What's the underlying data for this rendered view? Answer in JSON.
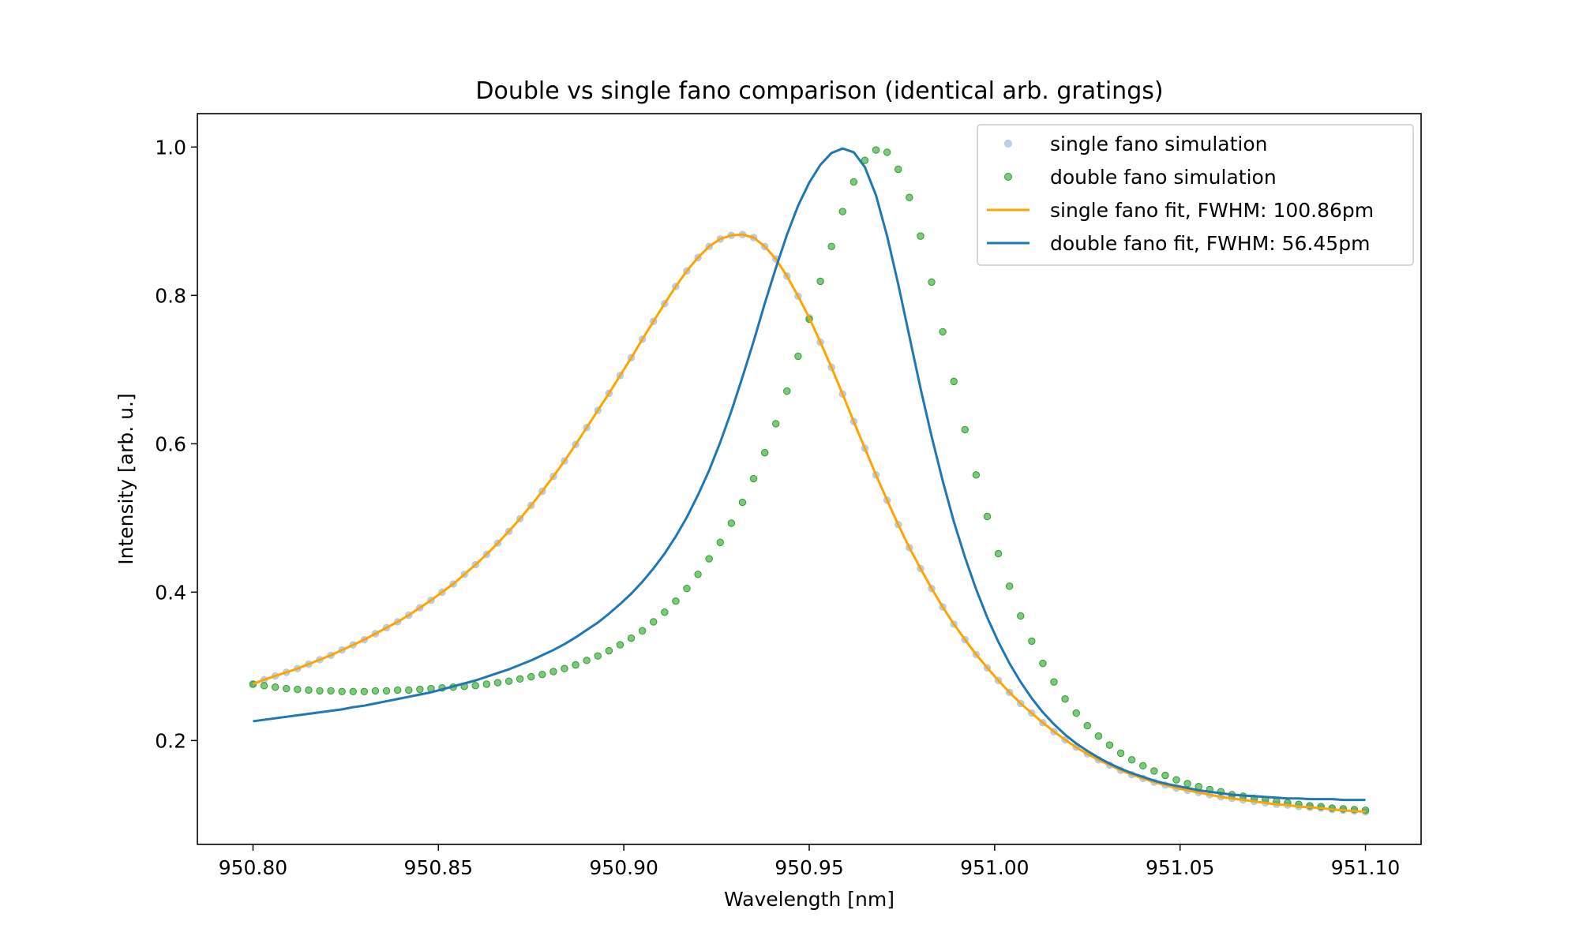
{
  "chart_data": {
    "type": "line",
    "title": "Double vs single fano comparison (identical arb. gratings)",
    "xlabel": "Wavelength [nm]",
    "ylabel": "Intensity [arb. u.]",
    "xlim": [
      950.785,
      951.115
    ],
    "ylim": [
      0.06,
      1.045
    ],
    "xticks": [
      950.8,
      950.85,
      950.9,
      950.95,
      951.0,
      951.05,
      951.1
    ],
    "xtick_labels": [
      "950.80",
      "950.85",
      "950.90",
      "950.95",
      "951.00",
      "951.05",
      "951.10"
    ],
    "yticks": [
      0.2,
      0.4,
      0.6,
      0.8,
      1.0
    ],
    "ytick_labels": [
      "0.2",
      "0.4",
      "0.6",
      "0.8",
      "1.0"
    ],
    "grid": false,
    "legend_placement": "top-right",
    "x": [
      950.8,
      950.803,
      950.806,
      950.809,
      950.812,
      950.815,
      950.818,
      950.821,
      950.824,
      950.827,
      950.83,
      950.833,
      950.836,
      950.839,
      950.842,
      950.845,
      950.848,
      950.851,
      950.854,
      950.857,
      950.86,
      950.863,
      950.866,
      950.869,
      950.872,
      950.875,
      950.878,
      950.881,
      950.884,
      950.887,
      950.89,
      950.893,
      950.896,
      950.899,
      950.902,
      950.905,
      950.908,
      950.911,
      950.914,
      950.917,
      950.92,
      950.923,
      950.926,
      950.929,
      950.932,
      950.935,
      950.938,
      950.941,
      950.944,
      950.947,
      950.95,
      950.953,
      950.956,
      950.959,
      950.962,
      950.965,
      950.968,
      950.971,
      950.974,
      950.977,
      950.98,
      950.983,
      950.986,
      950.989,
      950.992,
      950.995,
      950.998,
      951.001,
      951.004,
      951.007,
      951.01,
      951.013,
      951.016,
      951.019,
      951.022,
      951.025,
      951.028,
      951.031,
      951.034,
      951.037,
      951.04,
      951.043,
      951.046,
      951.049,
      951.052,
      951.055,
      951.058,
      951.061,
      951.064,
      951.067,
      951.07,
      951.073,
      951.076,
      951.079,
      951.082,
      951.085,
      951.088,
      951.091,
      951.094,
      951.097,
      951.1
    ],
    "series": [
      {
        "name": "single fano simulation",
        "kind": "markers",
        "color": "#aec7e8",
        "values": [
          0.276,
          0.282,
          0.287,
          0.292,
          0.297,
          0.303,
          0.309,
          0.315,
          0.322,
          0.329,
          0.336,
          0.344,
          0.352,
          0.36,
          0.369,
          0.379,
          0.389,
          0.4,
          0.411,
          0.424,
          0.437,
          0.451,
          0.466,
          0.482,
          0.499,
          0.517,
          0.536,
          0.556,
          0.577,
          0.599,
          0.622,
          0.645,
          0.668,
          0.692,
          0.716,
          0.741,
          0.765,
          0.789,
          0.812,
          0.833,
          0.851,
          0.866,
          0.876,
          0.881,
          0.882,
          0.878,
          0.866,
          0.849,
          0.826,
          0.799,
          0.77,
          0.737,
          0.703,
          0.667,
          0.63,
          0.594,
          0.558,
          0.524,
          0.491,
          0.46,
          0.432,
          0.405,
          0.38,
          0.357,
          0.336,
          0.316,
          0.298,
          0.281,
          0.265,
          0.25,
          0.237,
          0.224,
          0.212,
          0.201,
          0.191,
          0.182,
          0.174,
          0.167,
          0.16,
          0.154,
          0.149,
          0.144,
          0.14,
          0.136,
          0.133,
          0.13,
          0.127,
          0.124,
          0.122,
          0.12,
          0.118,
          0.116,
          0.114,
          0.113,
          0.111,
          0.11,
          0.109,
          0.107,
          0.106,
          0.105,
          0.104
        ]
      },
      {
        "name": "double fano simulation",
        "kind": "markers",
        "color": "#2ca02c",
        "values": [
          0.276,
          0.274,
          0.272,
          0.27,
          0.269,
          0.268,
          0.267,
          0.267,
          0.266,
          0.266,
          0.266,
          0.267,
          0.267,
          0.268,
          0.268,
          0.269,
          0.27,
          0.271,
          0.272,
          0.273,
          0.274,
          0.276,
          0.278,
          0.28,
          0.283,
          0.286,
          0.289,
          0.293,
          0.297,
          0.302,
          0.308,
          0.314,
          0.321,
          0.329,
          0.338,
          0.348,
          0.36,
          0.373,
          0.388,
          0.405,
          0.424,
          0.445,
          0.467,
          0.493,
          0.521,
          0.553,
          0.588,
          0.627,
          0.671,
          0.718,
          0.768,
          0.819,
          0.866,
          0.913,
          0.953,
          0.982,
          0.996,
          0.993,
          0.97,
          0.932,
          0.88,
          0.818,
          0.751,
          0.684,
          0.619,
          0.558,
          0.502,
          0.452,
          0.408,
          0.368,
          0.334,
          0.304,
          0.279,
          0.256,
          0.237,
          0.22,
          0.206,
          0.194,
          0.183,
          0.174,
          0.166,
          0.159,
          0.153,
          0.147,
          0.142,
          0.138,
          0.134,
          0.131,
          0.127,
          0.125,
          0.122,
          0.12,
          0.118,
          0.116,
          0.114,
          0.112,
          0.111,
          0.109,
          0.108,
          0.107,
          0.106
        ]
      },
      {
        "name": "single fano fit, FWHM: 100.86pm",
        "kind": "line",
        "color": "#ffa500",
        "values": [
          0.276,
          0.282,
          0.287,
          0.292,
          0.297,
          0.303,
          0.309,
          0.315,
          0.322,
          0.329,
          0.336,
          0.344,
          0.352,
          0.36,
          0.369,
          0.379,
          0.389,
          0.4,
          0.411,
          0.424,
          0.437,
          0.451,
          0.466,
          0.482,
          0.499,
          0.517,
          0.536,
          0.556,
          0.577,
          0.599,
          0.622,
          0.645,
          0.668,
          0.692,
          0.716,
          0.741,
          0.765,
          0.789,
          0.812,
          0.833,
          0.851,
          0.866,
          0.876,
          0.881,
          0.882,
          0.878,
          0.866,
          0.849,
          0.826,
          0.799,
          0.77,
          0.737,
          0.703,
          0.667,
          0.63,
          0.594,
          0.558,
          0.524,
          0.491,
          0.46,
          0.432,
          0.405,
          0.38,
          0.357,
          0.336,
          0.316,
          0.298,
          0.281,
          0.265,
          0.25,
          0.237,
          0.224,
          0.212,
          0.201,
          0.191,
          0.182,
          0.174,
          0.167,
          0.16,
          0.154,
          0.149,
          0.144,
          0.14,
          0.136,
          0.133,
          0.13,
          0.127,
          0.124,
          0.122,
          0.12,
          0.118,
          0.116,
          0.114,
          0.113,
          0.111,
          0.11,
          0.109,
          0.107,
          0.106,
          0.105,
          0.104
        ]
      },
      {
        "name": "double fano fit, FWHM: 56.45pm",
        "kind": "line",
        "color": "#1f77b4",
        "values": [
          0.226,
          0.228,
          0.23,
          0.232,
          0.234,
          0.236,
          0.238,
          0.24,
          0.242,
          0.245,
          0.247,
          0.25,
          0.253,
          0.256,
          0.259,
          0.262,
          0.265,
          0.269,
          0.273,
          0.277,
          0.281,
          0.286,
          0.291,
          0.296,
          0.302,
          0.308,
          0.315,
          0.322,
          0.33,
          0.339,
          0.349,
          0.359,
          0.371,
          0.384,
          0.398,
          0.414,
          0.432,
          0.452,
          0.475,
          0.501,
          0.531,
          0.564,
          0.602,
          0.644,
          0.69,
          0.738,
          0.789,
          0.837,
          0.882,
          0.921,
          0.952,
          0.976,
          0.992,
          0.998,
          0.993,
          0.973,
          0.935,
          0.88,
          0.815,
          0.745,
          0.675,
          0.61,
          0.55,
          0.495,
          0.447,
          0.404,
          0.366,
          0.333,
          0.304,
          0.279,
          0.257,
          0.238,
          0.222,
          0.208,
          0.196,
          0.186,
          0.177,
          0.169,
          0.162,
          0.156,
          0.151,
          0.146,
          0.142,
          0.139,
          0.136,
          0.133,
          0.131,
          0.129,
          0.127,
          0.126,
          0.125,
          0.124,
          0.123,
          0.122,
          0.122,
          0.121,
          0.121,
          0.121,
          0.12,
          0.12,
          0.12
        ]
      }
    ]
  }
}
